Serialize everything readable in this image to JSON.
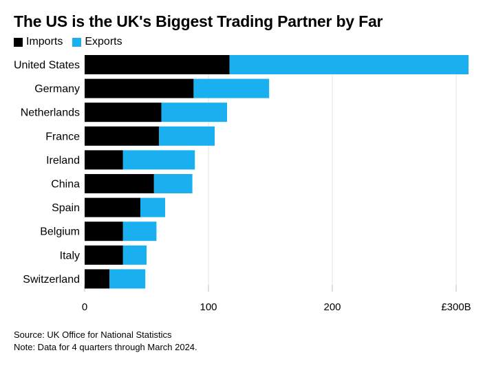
{
  "title": "The US is the UK's Biggest Trading Partner by Far",
  "colors": {
    "imports": "#000000",
    "exports": "#1ab0f0",
    "grid": "#e3e3e3",
    "tick": "#bfbfbf"
  },
  "chart_data": {
    "type": "bar",
    "orientation": "horizontal",
    "stacked": true,
    "title": "The US is the UK's Biggest Trading Partner by Far",
    "categories": [
      "United States",
      "Germany",
      "Netherlands",
      "France",
      "Ireland",
      "China",
      "Spain",
      "Belgium",
      "Italy",
      "Switzerland"
    ],
    "series": [
      {
        "name": "Imports",
        "values": [
          117,
          88,
          62,
          60,
          31,
          56,
          45,
          31,
          31,
          20
        ]
      },
      {
        "name": "Exports",
        "values": [
          193,
          61,
          53,
          45,
          58,
          31,
          20,
          27,
          19,
          29
        ]
      }
    ],
    "xlim": [
      0,
      310
    ],
    "xticks": [
      0,
      100,
      200,
      300
    ],
    "xtick_labels": [
      "0",
      "100",
      "200",
      "£300B"
    ],
    "legend": "top-left",
    "grid": true
  },
  "footer": {
    "source": "Source: UK Office for National Statistics",
    "note": "Note: Data for 4 quarters through March 2024."
  }
}
